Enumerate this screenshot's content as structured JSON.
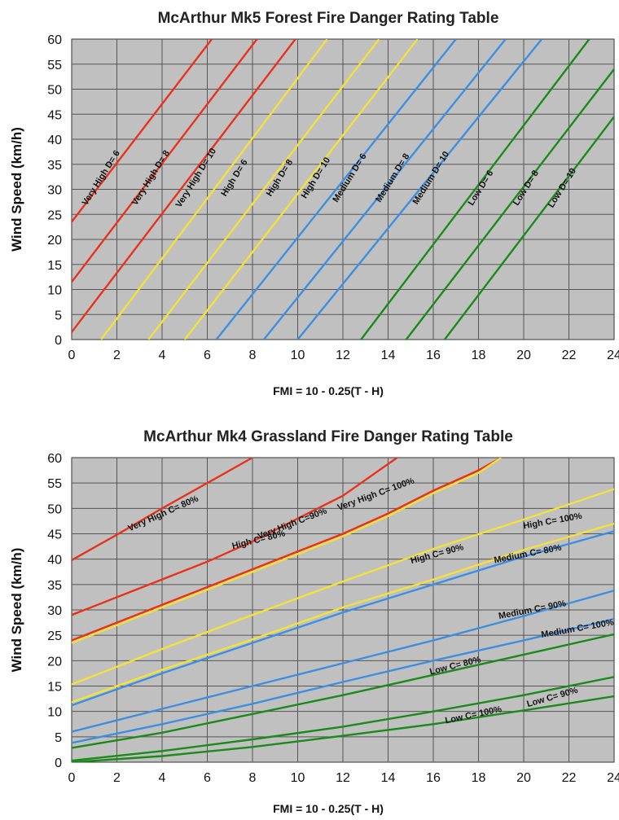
{
  "chart_data": [
    {
      "type": "line",
      "title": "McArthur Mk5 Forest Fire Danger Rating Table",
      "xlabel": "FMI = 10 - 0.25(T - H)",
      "ylabel": "Wind Speed (km/h)",
      "xlim": [
        0,
        24
      ],
      "ylim": [
        0,
        60
      ],
      "xticks": [
        "0",
        "2",
        "4",
        "6",
        "8",
        "10",
        "12",
        "14",
        "16",
        "18",
        "20",
        "22",
        "24"
      ],
      "yticks": [
        "0",
        "5",
        "10",
        "15",
        "20",
        "25",
        "30",
        "35",
        "40",
        "45",
        "50",
        "55",
        "60"
      ],
      "grid": true,
      "background": "#c0c0c0",
      "series": [
        {
          "name": "Very High D= 6",
          "color": "#e8321e",
          "x": [
            0,
            6.2
          ],
          "y": [
            23.5,
            60
          ]
        },
        {
          "name": "Very High D= 8",
          "color": "#e8321e",
          "x": [
            0,
            8.2
          ],
          "y": [
            11.5,
            60
          ]
        },
        {
          "name": "Very High D= 10",
          "color": "#e8321e",
          "x": [
            0,
            9.9
          ],
          "y": [
            1.5,
            60
          ]
        },
        {
          "name": "High D= 6",
          "color": "#f2e23a",
          "x": [
            1.3,
            11.3
          ],
          "y": [
            0,
            60
          ]
        },
        {
          "name": "High D= 8",
          "color": "#f2e23a",
          "x": [
            3.4,
            13.6
          ],
          "y": [
            0,
            60
          ]
        },
        {
          "name": "High D= 10",
          "color": "#f2e23a",
          "x": [
            5.0,
            15.3
          ],
          "y": [
            0,
            60
          ]
        },
        {
          "name": "Medium D= 6",
          "color": "#3c8fe0",
          "x": [
            6.4,
            17.0
          ],
          "y": [
            0,
            60
          ]
        },
        {
          "name": "Medium D= 8",
          "color": "#3c8fe0",
          "x": [
            8.5,
            19.2
          ],
          "y": [
            0,
            60
          ]
        },
        {
          "name": "Medium D= 10",
          "color": "#3c8fe0",
          "x": [
            10.0,
            20.8
          ],
          "y": [
            0,
            60
          ]
        },
        {
          "name": "Low D= 6",
          "color": "#1a8a1a",
          "x": [
            12.8,
            22.9
          ],
          "y": [
            0,
            60
          ]
        },
        {
          "name": "Low D= 8",
          "color": "#1a8a1a",
          "x": [
            14.8,
            24
          ],
          "y": [
            0,
            54
          ]
        },
        {
          "name": "Low D= 10",
          "color": "#1a8a1a",
          "x": [
            16.5,
            24
          ],
          "y": [
            0,
            44.5
          ]
        }
      ]
    },
    {
      "type": "line",
      "title": "McArthur Mk4 Grassland Fire Danger Rating Table",
      "xlabel": "FMI = 10 - 0.25(T - H)",
      "ylabel": "Wind Speed (km/h)",
      "xlim": [
        0,
        24
      ],
      "ylim": [
        0,
        60
      ],
      "xticks": [
        "0",
        "2",
        "4",
        "6",
        "8",
        "10",
        "12",
        "14",
        "16",
        "18",
        "20",
        "22",
        "24"
      ],
      "yticks": [
        "0",
        "5",
        "10",
        "15",
        "20",
        "25",
        "30",
        "35",
        "40",
        "45",
        "50",
        "55",
        "60"
      ],
      "grid": true,
      "background": "#c0c0c0",
      "series": [
        {
          "name": "Very High C= 80%",
          "color": "#e8321e",
          "x": [
            0,
            2,
            4,
            6,
            8
          ],
          "y": [
            39.8,
            44.8,
            50,
            55,
            60
          ]
        },
        {
          "name": "Very High C=90%",
          "color": "#e8321e",
          "x": [
            0,
            2,
            4,
            6,
            8,
            10,
            12,
            14.4
          ],
          "y": [
            29,
            32.5,
            36,
            39.5,
            43.5,
            48,
            52.5,
            60
          ]
        },
        {
          "name": "Very High C= 100%",
          "color": "#e8321e",
          "x": [
            0,
            2,
            4,
            6,
            8,
            10,
            12,
            14,
            16,
            18,
            19
          ],
          "y": [
            24,
            27.5,
            31,
            34.5,
            38,
            41.5,
            45,
            49,
            53.5,
            57.5,
            60
          ]
        },
        {
          "name": "High C= 80%",
          "color": "#f2e23a",
          "x": [
            0,
            2,
            4,
            6,
            8,
            10,
            12,
            14,
            16,
            18,
            19
          ],
          "y": [
            23.5,
            27,
            30.5,
            34,
            37.5,
            41,
            44.5,
            48.5,
            53,
            57,
            60
          ]
        },
        {
          "name": "High C= 90%",
          "color": "#f2e23a",
          "x": [
            0,
            4,
            8,
            12,
            16,
            20,
            24
          ],
          "y": [
            15.3,
            22.3,
            29,
            35.6,
            42,
            47.8,
            53.8
          ]
        },
        {
          "name": "High C= 100%",
          "color": "#f2e23a",
          "x": [
            0,
            4,
            8,
            12,
            16,
            20,
            24
          ],
          "y": [
            11.8,
            18.2,
            24.2,
            30.5,
            36,
            41.8,
            47
          ]
        },
        {
          "name": "Medium C= 80%",
          "color": "#3c8fe0",
          "x": [
            0,
            4,
            8,
            12,
            16,
            20,
            24
          ],
          "y": [
            11.2,
            17.5,
            23.5,
            29.5,
            35,
            40.5,
            45.5
          ]
        },
        {
          "name": "Medium C= 90%",
          "color": "#3c8fe0",
          "x": [
            0,
            4,
            8,
            12,
            16,
            20,
            24
          ],
          "y": [
            6,
            10.5,
            15,
            19.5,
            24,
            28.8,
            33.8
          ]
        },
        {
          "name": "Medium C= 100%",
          "color": "#3c8fe0",
          "x": [
            0,
            4,
            8,
            12,
            16,
            20,
            24
          ],
          "y": [
            3.8,
            7.5,
            11.5,
            15.8,
            20,
            24,
            28.2
          ]
        },
        {
          "name": "Low C= 80%",
          "color": "#1a8a1a",
          "x": [
            0,
            4,
            8,
            12,
            16,
            20,
            24
          ],
          "y": [
            2.8,
            5.8,
            9.5,
            13.2,
            17.2,
            21.2,
            25.2
          ]
        },
        {
          "name": "Low C= 90%",
          "color": "#1a8a1a",
          "x": [
            0,
            4,
            8,
            12,
            16,
            20,
            24
          ],
          "y": [
            0.3,
            2.2,
            4.5,
            7,
            10,
            13.2,
            16.8
          ]
        },
        {
          "name": "Low C= 100%",
          "color": "#1a8a1a",
          "x": [
            0,
            4,
            8,
            12,
            16,
            20,
            24
          ],
          "y": [
            0,
            1.2,
            3,
            5.2,
            7.5,
            10.2,
            13
          ]
        }
      ]
    }
  ]
}
